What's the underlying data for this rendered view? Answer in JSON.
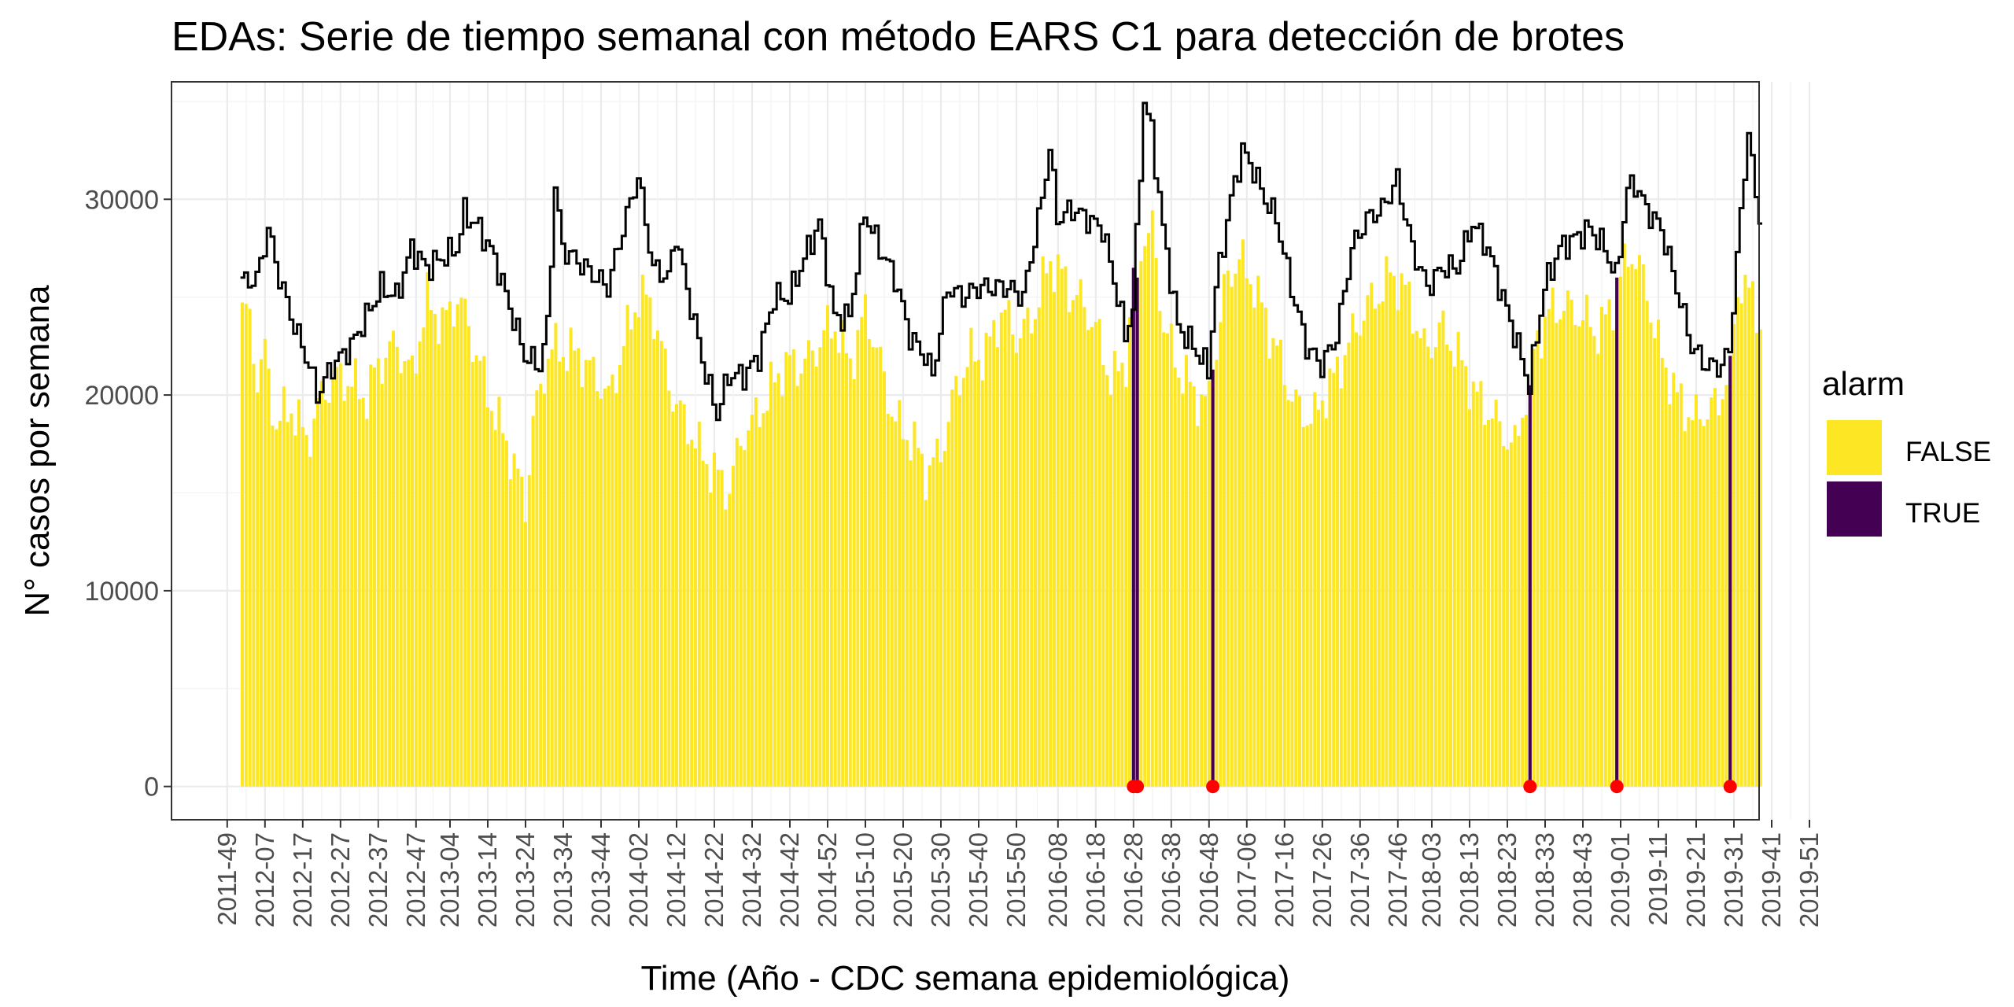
{
  "chart_data": {
    "type": "bar",
    "title": "EDAs: Serie de tiempo semanal con método EARS C1 para detección de brotes",
    "xlabel": "Time (Año - CDC semana epidemiológica)",
    "ylabel": "N° casos por semana",
    "ylim": [
      -1700,
      36000
    ],
    "yticks": [
      0,
      10000,
      20000,
      30000
    ],
    "xticks": [
      "2011-49",
      "2012-07",
      "2012-17",
      "2012-27",
      "2012-37",
      "2012-47",
      "2013-04",
      "2013-14",
      "2013-24",
      "2013-34",
      "2013-44",
      "2014-02",
      "2014-12",
      "2014-22",
      "2014-32",
      "2014-42",
      "2014-52",
      "2015-10",
      "2015-20",
      "2015-30",
      "2015-40",
      "2015-50",
      "2016-08",
      "2016-18",
      "2016-28",
      "2016-38",
      "2016-48",
      "2017-06",
      "2017-16",
      "2017-26",
      "2017-36",
      "2017-46",
      "2018-03",
      "2018-13",
      "2018-23",
      "2018-33",
      "2018-43",
      "2019-01",
      "2019-11",
      "2019-21",
      "2019-31",
      "2019-41",
      "2019-51"
    ],
    "first_week": "2012-01",
    "last_week": "2019-38",
    "grid": true,
    "legend": {
      "title": "alarm",
      "position": "right",
      "entries": [
        {
          "label": "FALSE",
          "color": "#FDE725"
        },
        {
          "label": "TRUE",
          "color": "#440154"
        }
      ]
    },
    "colors": {
      "bar_false": "#FDE725",
      "bar_true": "#440154",
      "threshold_line": "#000000",
      "alarm_point": "#FF0000"
    },
    "series": [
      {
        "name": "observed",
        "anchors": [
          [
            "2012-01",
            24000
          ],
          [
            "2012-03",
            23500
          ],
          [
            "2012-05",
            21000
          ],
          [
            "2012-07",
            22500
          ],
          [
            "2012-10",
            18500
          ],
          [
            "2012-14",
            19000
          ],
          [
            "2012-18",
            18000
          ],
          [
            "2012-22",
            20000
          ],
          [
            "2012-26",
            20500
          ],
          [
            "2012-30",
            21000
          ],
          [
            "2012-34",
            20000
          ],
          [
            "2012-38",
            21500
          ],
          [
            "2012-42",
            23000
          ],
          [
            "2012-46",
            21000
          ],
          [
            "2012-50",
            24500
          ],
          [
            "2013-02",
            24000
          ],
          [
            "2013-06",
            25000
          ],
          [
            "2013-10",
            22500
          ],
          [
            "2013-14",
            20500
          ],
          [
            "2013-18",
            18000
          ],
          [
            "2013-22",
            15500
          ],
          [
            "2013-24",
            14500
          ],
          [
            "2013-26",
            19000
          ],
          [
            "2013-30",
            22000
          ],
          [
            "2013-34",
            22000
          ],
          [
            "2013-38",
            22500
          ],
          [
            "2013-42",
            21000
          ],
          [
            "2013-46",
            19500
          ],
          [
            "2013-50",
            23000
          ],
          [
            "2014-02",
            25000
          ],
          [
            "2014-06",
            24000
          ],
          [
            "2014-10",
            21000
          ],
          [
            "2014-14",
            18500
          ],
          [
            "2014-18",
            17000
          ],
          [
            "2014-22",
            16500
          ],
          [
            "2014-26",
            15000
          ],
          [
            "2014-30",
            18000
          ],
          [
            "2014-34",
            19500
          ],
          [
            "2014-38",
            20500
          ],
          [
            "2014-42",
            21500
          ],
          [
            "2014-46",
            22000
          ],
          [
            "2014-50",
            22500
          ],
          [
            "2015-02",
            23500
          ],
          [
            "2015-06",
            22000
          ],
          [
            "2015-10",
            24000
          ],
          [
            "2015-14",
            21500
          ],
          [
            "2015-18",
            19000
          ],
          [
            "2015-22",
            17500
          ],
          [
            "2015-26",
            16000
          ],
          [
            "2015-30",
            17500
          ],
          [
            "2015-34",
            20000
          ],
          [
            "2015-38",
            22000
          ],
          [
            "2015-42",
            22500
          ],
          [
            "2015-46",
            24000
          ],
          [
            "2015-50",
            23000
          ],
          [
            "2016-02",
            24500
          ],
          [
            "2016-06",
            26500
          ],
          [
            "2016-10",
            26000
          ],
          [
            "2016-14",
            25000
          ],
          [
            "2016-18",
            23000
          ],
          [
            "2016-22",
            21000
          ],
          [
            "2016-26",
            22000
          ],
          [
            "2016-30",
            27500
          ],
          [
            "2016-33",
            28500
          ],
          [
            "2016-36",
            24000
          ],
          [
            "2016-40",
            21000
          ],
          [
            "2016-44",
            20000
          ],
          [
            "2016-48",
            20000
          ],
          [
            "2016-52",
            25000
          ],
          [
            "2017-04",
            27000
          ],
          [
            "2017-08",
            26000
          ],
          [
            "2017-12",
            23000
          ],
          [
            "2017-16",
            21000
          ],
          [
            "2017-20",
            19500
          ],
          [
            "2017-24",
            18500
          ],
          [
            "2017-28",
            20500
          ],
          [
            "2017-32",
            22500
          ],
          [
            "2017-36",
            23500
          ],
          [
            "2017-40",
            25000
          ],
          [
            "2017-44",
            26500
          ],
          [
            "2017-48",
            25000
          ],
          [
            "2018-01",
            22500
          ],
          [
            "2018-05",
            23500
          ],
          [
            "2018-09",
            22000
          ],
          [
            "2018-13",
            21000
          ],
          [
            "2018-17",
            19500
          ],
          [
            "2018-21",
            18000
          ],
          [
            "2018-25",
            17500
          ],
          [
            "2018-27",
            19500
          ],
          [
            "2018-30",
            22000
          ],
          [
            "2018-34",
            24000
          ],
          [
            "2018-38",
            25000
          ],
          [
            "2018-42",
            24000
          ],
          [
            "2018-46",
            23000
          ],
          [
            "2018-50",
            24500
          ],
          [
            "2019-01",
            26000
          ],
          [
            "2019-04",
            27000
          ],
          [
            "2019-08",
            25500
          ],
          [
            "2019-12",
            22000
          ],
          [
            "2019-16",
            19500
          ],
          [
            "2019-20",
            19000
          ],
          [
            "2019-24",
            19500
          ],
          [
            "2019-27",
            19000
          ],
          [
            "2019-30",
            22000
          ],
          [
            "2019-33",
            26500
          ],
          [
            "2019-35",
            25500
          ],
          [
            "2019-38",
            23500
          ]
        ]
      },
      {
        "name": "threshold",
        "anchors": [
          [
            "2012-01",
            25800
          ],
          [
            "2012-05",
            25900
          ],
          [
            "2012-08",
            28500
          ],
          [
            "2012-11",
            26000
          ],
          [
            "2012-15",
            23500
          ],
          [
            "2012-19",
            21500
          ],
          [
            "2012-21",
            20000
          ],
          [
            "2012-25",
            21500
          ],
          [
            "2012-30",
            22500
          ],
          [
            "2012-34",
            24000
          ],
          [
            "2012-38",
            25500
          ],
          [
            "2012-42",
            25000
          ],
          [
            "2012-46",
            27500
          ],
          [
            "2012-50",
            26500
          ],
          [
            "2013-02",
            27000
          ],
          [
            "2013-06",
            27500
          ],
          [
            "2013-08",
            29300
          ],
          [
            "2013-12",
            28500
          ],
          [
            "2013-16",
            27000
          ],
          [
            "2013-20",
            24500
          ],
          [
            "2013-24",
            22000
          ],
          [
            "2013-28",
            21500
          ],
          [
            "2013-30",
            23500
          ],
          [
            "2013-32",
            30700
          ],
          [
            "2013-34",
            27500
          ],
          [
            "2013-40",
            26500
          ],
          [
            "2013-46",
            25500
          ],
          [
            "2013-50",
            28500
          ],
          [
            "2014-02",
            31200
          ],
          [
            "2014-06",
            26500
          ],
          [
            "2014-10",
            26000
          ],
          [
            "2014-12",
            28200
          ],
          [
            "2014-16",
            24500
          ],
          [
            "2014-20",
            21000
          ],
          [
            "2014-23",
            19000
          ],
          [
            "2014-26",
            21000
          ],
          [
            "2014-30",
            21000
          ],
          [
            "2014-34",
            22000
          ],
          [
            "2014-38",
            25000
          ],
          [
            "2014-42",
            25000
          ],
          [
            "2014-46",
            27000
          ],
          [
            "2014-50",
            28800
          ],
          [
            "2015-02",
            24000
          ],
          [
            "2015-06",
            24000
          ],
          [
            "2015-10",
            29300
          ],
          [
            "2015-14",
            27500
          ],
          [
            "2015-18",
            26000
          ],
          [
            "2015-22",
            23000
          ],
          [
            "2015-26",
            22000
          ],
          [
            "2015-28",
            21000
          ],
          [
            "2015-32",
            25500
          ],
          [
            "2015-36",
            25000
          ],
          [
            "2015-40",
            25500
          ],
          [
            "2015-44",
            25500
          ],
          [
            "2015-48",
            25500
          ],
          [
            "2015-52",
            25000
          ],
          [
            "2016-04",
            30000
          ],
          [
            "2016-06",
            32700
          ],
          [
            "2016-08",
            29000
          ],
          [
            "2016-12",
            29500
          ],
          [
            "2016-16",
            29000
          ],
          [
            "2016-20",
            28500
          ],
          [
            "2016-24",
            25000
          ],
          [
            "2016-26",
            23000
          ],
          [
            "2016-28",
            24500
          ],
          [
            "2016-31",
            35000
          ],
          [
            "2016-33",
            33500
          ],
          [
            "2016-36",
            28500
          ],
          [
            "2016-40",
            23500
          ],
          [
            "2016-44",
            22500
          ],
          [
            "2016-48",
            21300
          ],
          [
            "2016-50",
            25500
          ],
          [
            "2017-02",
            30000
          ],
          [
            "2017-05",
            32500
          ],
          [
            "2017-08",
            31500
          ],
          [
            "2017-11",
            30000
          ],
          [
            "2017-14",
            29000
          ],
          [
            "2017-18",
            25500
          ],
          [
            "2017-22",
            22500
          ],
          [
            "2017-26",
            21500
          ],
          [
            "2017-30",
            23000
          ],
          [
            "2017-34",
            27500
          ],
          [
            "2017-38",
            29000
          ],
          [
            "2017-42",
            29500
          ],
          [
            "2017-46",
            31000
          ],
          [
            "2017-50",
            27500
          ],
          [
            "2018-02",
            25500
          ],
          [
            "2018-06",
            26500
          ],
          [
            "2018-10",
            26500
          ],
          [
            "2018-14",
            28800
          ],
          [
            "2018-18",
            27500
          ],
          [
            "2018-22",
            25000
          ],
          [
            "2018-26",
            22500
          ],
          [
            "2018-29",
            20500
          ],
          [
            "2018-33",
            25500
          ],
          [
            "2018-37",
            27500
          ],
          [
            "2018-41",
            28000
          ],
          [
            "2018-45",
            28500
          ],
          [
            "2018-49",
            27500
          ],
          [
            "2018-52",
            26000
          ],
          [
            "2019-03",
            30500
          ],
          [
            "2019-05",
            30800
          ],
          [
            "2019-08",
            29500
          ],
          [
            "2019-12",
            28500
          ],
          [
            "2019-16",
            25500
          ],
          [
            "2019-20",
            22500
          ],
          [
            "2019-24",
            21500
          ],
          [
            "2019-28",
            21500
          ],
          [
            "2019-30",
            22300
          ],
          [
            "2019-32",
            27000
          ],
          [
            "2019-35",
            33600
          ],
          [
            "2019-37",
            30000
          ],
          [
            "2019-38",
            29300
          ]
        ]
      }
    ],
    "alarms": [
      {
        "week": "2016-28",
        "value": 26500
      },
      {
        "week": "2016-29",
        "value": 26000
      },
      {
        "week": "2016-49",
        "value": 21300
      },
      {
        "week": "2018-29",
        "value": 20500
      },
      {
        "week": "2018-52",
        "value": 26000
      },
      {
        "week": "2019-30",
        "value": 22000
      }
    ]
  }
}
